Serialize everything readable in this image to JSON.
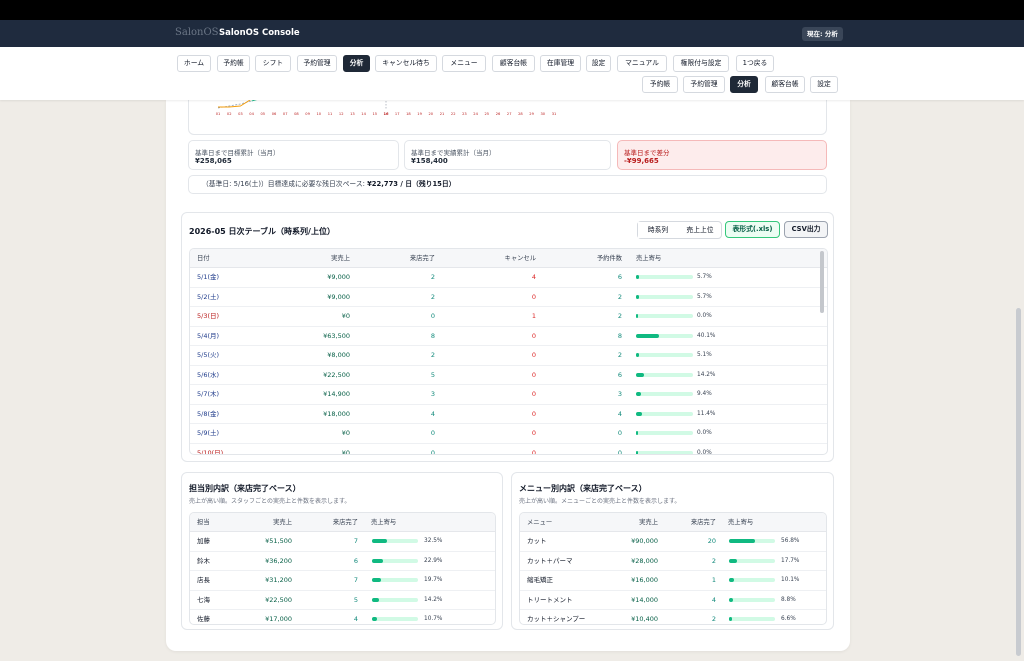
{
  "header": {
    "logo": "SalonOS",
    "title": "SalonOS Console",
    "badge": "現在: 分析"
  },
  "nav": {
    "main": [
      {
        "label": "ホーム",
        "active": false
      },
      {
        "label": "予約帳",
        "active": false
      },
      {
        "label": "シフト",
        "active": false
      },
      {
        "label": "予約管理",
        "active": false
      },
      {
        "label": "分析",
        "active": true
      },
      {
        "label": "キャンセル待ち",
        "active": false
      },
      {
        "label": "メニュー",
        "active": false
      },
      {
        "label": "顧客台帳",
        "active": false
      },
      {
        "label": "在庫管理",
        "active": false
      },
      {
        "label": "設定",
        "active": false
      },
      {
        "label": "マニュアル",
        "active": false
      },
      {
        "label": "権限付与設定",
        "active": false
      },
      {
        "label": "1つ戻る",
        "active": false
      }
    ],
    "sub": [
      {
        "label": "予約帳",
        "active": false
      },
      {
        "label": "予約管理",
        "active": false
      },
      {
        "label": "分析",
        "active": true
      },
      {
        "label": "顧客台帳",
        "active": false
      },
      {
        "label": "設定",
        "active": false
      }
    ]
  },
  "trend_chart": {
    "x_ticks": [
      "01",
      "02",
      "03",
      "04",
      "05",
      "06",
      "07",
      "08",
      "09",
      "10",
      "11",
      "12",
      "13",
      "14",
      "15",
      "16",
      "17",
      "18",
      "19",
      "20",
      "21",
      "22",
      "23",
      "24",
      "25",
      "26",
      "27",
      "28",
      "29",
      "30",
      "31"
    ],
    "reference_day": "16"
  },
  "kpis": [
    {
      "label": "基準日まで目標累計（当月）",
      "value": "¥258,065"
    },
    {
      "label": "基準日まで実績累計（当月）",
      "value": "¥158,400"
    },
    {
      "label": "基準日まで差分",
      "value": "-¥99,665"
    }
  ],
  "note": {
    "prefix": "（基準日: 5/16(土)）目標達成に必要な残日次ペース:",
    "value": "¥22,773 / 日（残り15日）"
  },
  "daily": {
    "title": "2026-05 日次テーブル（時系列/上位）",
    "segments": [
      "時系列",
      "売上上位"
    ],
    "export_xls": "表形式(.xls)",
    "export_csv": "CSV出力",
    "columns": [
      "日付",
      "実売上",
      "来店完了",
      "キャンセル",
      "予約件数",
      "売上寄与"
    ],
    "rows": [
      {
        "date": "5/1(金)",
        "sales": "¥9,000",
        "visits": "2",
        "cancels": "4",
        "bookings": "6",
        "share": 5.7,
        "share_label": "5.7%",
        "holiday": false
      },
      {
        "date": "5/2(土)",
        "sales": "¥9,000",
        "visits": "2",
        "cancels": "0",
        "bookings": "2",
        "share": 5.7,
        "share_label": "5.7%",
        "holiday": false
      },
      {
        "date": "5/3(日)",
        "sales": "¥0",
        "visits": "0",
        "cancels": "1",
        "bookings": "2",
        "share": 0.0,
        "share_label": "0.0%",
        "holiday": true
      },
      {
        "date": "5/4(月)",
        "sales": "¥63,500",
        "visits": "8",
        "cancels": "0",
        "bookings": "8",
        "share": 40.1,
        "share_label": "40.1%",
        "holiday": false
      },
      {
        "date": "5/5(火)",
        "sales": "¥8,000",
        "visits": "2",
        "cancels": "0",
        "bookings": "2",
        "share": 5.1,
        "share_label": "5.1%",
        "holiday": false
      },
      {
        "date": "5/6(水)",
        "sales": "¥22,500",
        "visits": "5",
        "cancels": "0",
        "bookings": "6",
        "share": 14.2,
        "share_label": "14.2%",
        "holiday": false
      },
      {
        "date": "5/7(木)",
        "sales": "¥14,900",
        "visits": "3",
        "cancels": "0",
        "bookings": "3",
        "share": 9.4,
        "share_label": "9.4%",
        "holiday": false
      },
      {
        "date": "5/8(金)",
        "sales": "¥18,000",
        "visits": "4",
        "cancels": "0",
        "bookings": "4",
        "share": 11.4,
        "share_label": "11.4%",
        "holiday": false
      },
      {
        "date": "5/9(土)",
        "sales": "¥0",
        "visits": "0",
        "cancels": "0",
        "bookings": "0",
        "share": 0.0,
        "share_label": "0.0%",
        "holiday": false
      },
      {
        "date": "5/10(日)",
        "sales": "¥0",
        "visits": "0",
        "cancels": "0",
        "bookings": "0",
        "share": 0.0,
        "share_label": "0.0%",
        "holiday": true
      }
    ]
  },
  "staff": {
    "title": "担当別内訳（来店完了ベース）",
    "desc": "売上が高い順。スタッフごとの実売上と件数を表示します。",
    "columns": [
      "担当",
      "実売上",
      "来店完了",
      "売上寄与"
    ],
    "rows": [
      {
        "name": "加藤",
        "sales": "¥51,500",
        "visits": "7",
        "share": 32.5,
        "share_label": "32.5%"
      },
      {
        "name": "鈴木",
        "sales": "¥36,200",
        "visits": "6",
        "share": 22.9,
        "share_label": "22.9%"
      },
      {
        "name": "店長",
        "sales": "¥31,200",
        "visits": "7",
        "share": 19.7,
        "share_label": "19.7%"
      },
      {
        "name": "七海",
        "sales": "¥22,500",
        "visits": "5",
        "share": 14.2,
        "share_label": "14.2%"
      },
      {
        "name": "佐藤",
        "sales": "¥17,000",
        "visits": "4",
        "share": 10.7,
        "share_label": "10.7%"
      }
    ]
  },
  "menus": {
    "title": "メニュー別内訳（来店完了ベース）",
    "desc": "売上が高い順。メニューごとの実売上と件数を表示します。",
    "columns": [
      "メニュー",
      "実売上",
      "来店完了",
      "売上寄与"
    ],
    "rows": [
      {
        "name": "カット",
        "sales": "¥90,000",
        "visits": "20",
        "share": 56.8,
        "share_label": "56.8%"
      },
      {
        "name": "カット＋パーマ",
        "sales": "¥28,000",
        "visits": "2",
        "share": 17.7,
        "share_label": "17.7%"
      },
      {
        "name": "縮毛矯正",
        "sales": "¥16,000",
        "visits": "1",
        "share": 10.1,
        "share_label": "10.1%"
      },
      {
        "name": "トリートメント",
        "sales": "¥14,000",
        "visits": "4",
        "share": 8.8,
        "share_label": "8.8%"
      },
      {
        "name": "カット＋シャンプー",
        "sales": "¥10,400",
        "visits": "2",
        "share": 6.6,
        "share_label": "6.6%"
      }
    ]
  },
  "colors": {
    "header_bg": "#1f2b3e",
    "accent_green": "#10b981",
    "negative_red": "#b91c1c"
  }
}
